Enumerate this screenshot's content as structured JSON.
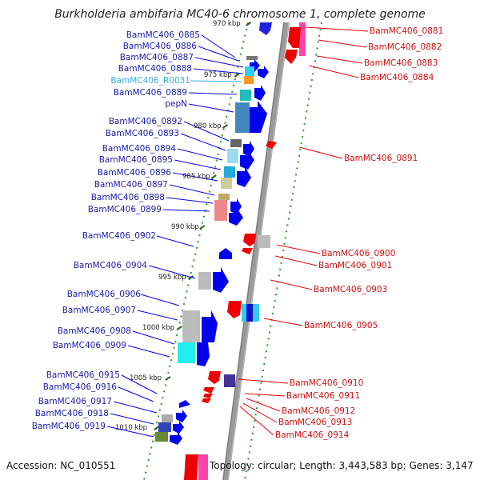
{
  "title": "Burkholderia ambifaria MC40-6 chromosome 1, complete genome",
  "footer": {
    "accession": "Accession: NC_010551",
    "summary": "Topology: circular; Length: 3,443,583 bp; Genes: 3,147"
  },
  "kbp_ticks": [
    "970 kbp",
    "975 kbp",
    "980 kbp",
    "985 kbp",
    "990 kbp",
    "995 kbp",
    "1000 kbp",
    "1005 kbp",
    "1010 kbp"
  ],
  "left_labels": [
    "BamMC406_0885",
    "BamMC406_0886",
    "BamMC406_0887",
    "BamMC406_0888",
    "BamMC406_R0031",
    "BamMC406_0889",
    "pepN",
    "BamMC406_0892",
    "BamMC406_0893",
    "BamMC406_0894",
    "BamMC406_0895",
    "BamMC406_0896",
    "BamMC406_0897",
    "BamMC406_0898",
    "BamMC406_0899",
    "BamMC406_0902",
    "BamMC406_0904",
    "BamMC406_0906",
    "BamMC406_0907",
    "BamMC406_0908",
    "BamMC406_0909",
    "BamMC406_0915",
    "BamMC406_0916",
    "BamMC406_0917",
    "BamMC406_0918",
    "BamMC406_0919"
  ],
  "right_labels": [
    "BamMC406_0881",
    "BamMC406_0882",
    "BamMC406_0883",
    "BamMC406_0884",
    "BamMC406_0891",
    "BamMC406_0900",
    "BamMC406_0901",
    "BamMC406_0903",
    "BamMC406_0905",
    "BamMC406_0910",
    "BamMC406_0911",
    "BamMC406_0912",
    "BamMC406_0913",
    "BamMC406_0914"
  ],
  "colors": {
    "forward_gene": "#0000ee",
    "reverse_gene": "#ee0000",
    "rna_label": "#33aadd",
    "backbone": "#888888",
    "gc_dots": "#229922",
    "tick": "#226622"
  }
}
